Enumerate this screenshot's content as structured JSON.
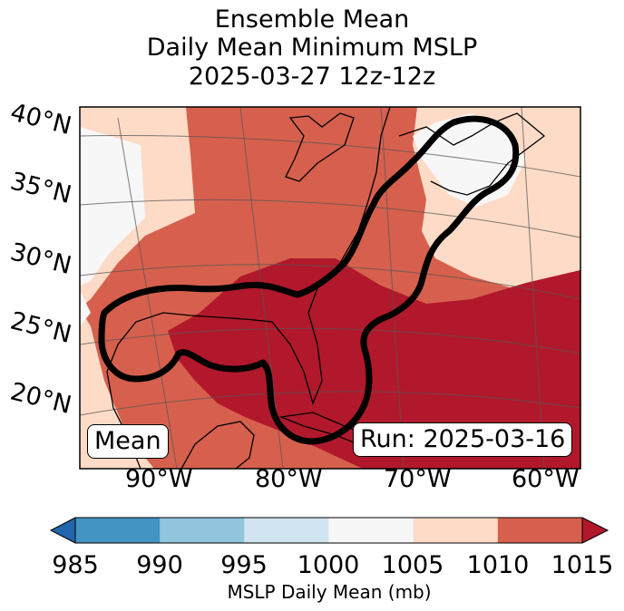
{
  "title": {
    "line1": "Ensemble Mean",
    "line2": "Daily Mean Minimum MSLP",
    "line3": "2025-03-27 12z-12z"
  },
  "map": {
    "lat_labels": [
      "40°N",
      "35°N",
      "30°N",
      "25°N",
      "20°N"
    ],
    "lon_labels": [
      "90°W",
      "80°W",
      "70°W",
      "60°W"
    ],
    "mean_box": "Mean",
    "run_box": "Run: 2025-03-16",
    "fill_regions": [
      {
        "name": "northwest-pale",
        "class": "1000-1005",
        "color": "#f7f7f7"
      },
      {
        "name": "western-band",
        "class": "1005-1010",
        "color": "#fddbc7"
      },
      {
        "name": "central-band",
        "class": "1010-1015",
        "color": "#d6604d"
      },
      {
        "name": "gulf-core",
        "class": ">1015",
        "color": "#b2182b"
      },
      {
        "name": "northeast-pale",
        "class": "1000-1005",
        "color": "#f7f7f7"
      },
      {
        "name": "northeast-band",
        "class": "1005-1010",
        "color": "#fddbc7"
      }
    ]
  },
  "colorbar": {
    "ticks": [
      "985",
      "990",
      "995",
      "1000",
      "1005",
      "1010",
      "1015"
    ],
    "colors": [
      "#2166ac",
      "#4393c3",
      "#92c5de",
      "#d1e5f0",
      "#f7f7f7",
      "#fddbc7",
      "#d6604d",
      "#b2182b"
    ],
    "label": "MSLP Daily Mean (mb)"
  }
}
